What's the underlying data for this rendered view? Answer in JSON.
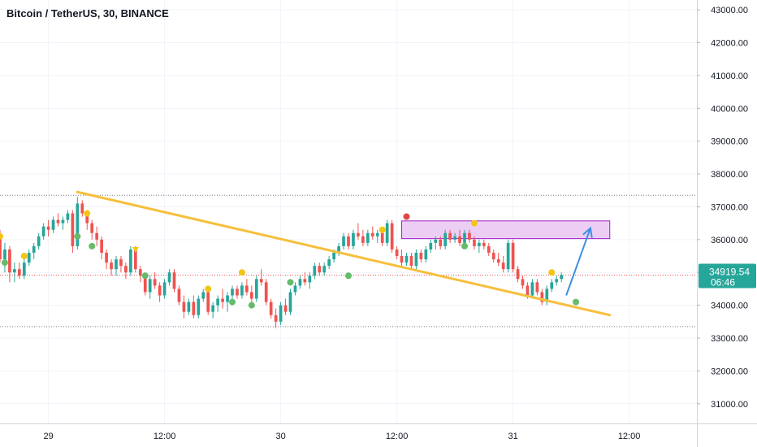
{
  "chart_title": "Bitcoin / TetherUS, 30, BINANCE",
  "colors": {
    "up": "#26a69a",
    "down": "#ef5350",
    "trendline": "#f6bf3c",
    "resistance_box_fill": "#e9c6f3",
    "resistance_box_border": "#a020c8",
    "arrow": "#3d8fe0",
    "price_label_bg": "#26a69a",
    "yellow_dot": "#f3c614",
    "green_dot": "#66bb6a",
    "red_dot": "#e04646"
  },
  "chart_data": {
    "type": "candlestick",
    "ylim": [
      30400,
      43300
    ],
    "y_ticks": [
      "43000.00",
      "42000.00",
      "41000.00",
      "40000.00",
      "39000.00",
      "38000.00",
      "37000.00",
      "36000.00",
      "35000.00",
      "34000.00",
      "33000.00",
      "32000.00",
      "31000.00"
    ],
    "x_ticks": [
      "29",
      "12:00",
      "30",
      "12:00",
      "31",
      "12:00"
    ],
    "x_tick_index": [
      12,
      36,
      60,
      84,
      108,
      132
    ],
    "x_range": [
      2,
      146
    ],
    "candles": [
      [
        36300,
        36800,
        35900,
        36500
      ],
      [
        36500,
        36600,
        36000,
        36100
      ],
      [
        36100,
        36300,
        35300,
        35400
      ],
      [
        35400,
        35900,
        35000,
        35700
      ],
      [
        35700,
        35800,
        34700,
        35000
      ],
      [
        35000,
        35300,
        34700,
        35100
      ],
      [
        35100,
        35300,
        34800,
        34900
      ],
      [
        34900,
        35500,
        34800,
        35300
      ],
      [
        35300,
        35700,
        35200,
        35600
      ],
      [
        35600,
        35900,
        35400,
        35800
      ],
      [
        35800,
        36200,
        35700,
        36100
      ],
      [
        36100,
        36500,
        36000,
        36400
      ],
      [
        36400,
        36600,
        36100,
        36300
      ],
      [
        36300,
        36700,
        36200,
        36600
      ],
      [
        36600,
        36800,
        36400,
        36500
      ],
      [
        36500,
        36700,
        36300,
        36600
      ],
      [
        36600,
        36900,
        36500,
        36800
      ],
      [
        36800,
        36900,
        35600,
        35800
      ],
      [
        35800,
        37300,
        35700,
        37100
      ],
      [
        37100,
        37200,
        36700,
        36800
      ],
      [
        36800,
        36900,
        36300,
        36500
      ],
      [
        36500,
        36600,
        36000,
        36200
      ],
      [
        36200,
        36400,
        35800,
        36000
      ],
      [
        36000,
        36100,
        35400,
        35600
      ],
      [
        35600,
        35700,
        35100,
        35300
      ],
      [
        35300,
        35400,
        34900,
        35100
      ],
      [
        35100,
        35500,
        34900,
        35400
      ],
      [
        35400,
        35500,
        35000,
        35200
      ],
      [
        35200,
        35300,
        34800,
        35000
      ],
      [
        35000,
        35800,
        34900,
        35700
      ],
      [
        35700,
        35800,
        35000,
        35100
      ],
      [
        35100,
        35200,
        34700,
        34900
      ],
      [
        34900,
        35000,
        34300,
        34400
      ],
      [
        34400,
        34900,
        34200,
        34800
      ],
      [
        34800,
        35000,
        34500,
        34600
      ],
      [
        34600,
        34700,
        34100,
        34300
      ],
      [
        34300,
        34800,
        34200,
        34700
      ],
      [
        34700,
        35100,
        34600,
        35000
      ],
      [
        35000,
        35100,
        34400,
        34500
      ],
      [
        34500,
        34600,
        34000,
        34100
      ],
      [
        34100,
        34300,
        33600,
        33800
      ],
      [
        33800,
        34200,
        33700,
        34100
      ],
      [
        34100,
        34300,
        33600,
        33700
      ],
      [
        33700,
        34300,
        33600,
        34200
      ],
      [
        34200,
        34500,
        34100,
        34400
      ],
      [
        34400,
        34500,
        33700,
        33800
      ],
      [
        33800,
        34100,
        33600,
        34000
      ],
      [
        34000,
        34300,
        33800,
        34200
      ],
      [
        34200,
        34500,
        33900,
        34100
      ],
      [
        34100,
        34400,
        33800,
        34300
      ],
      [
        34300,
        34600,
        34200,
        34500
      ],
      [
        34500,
        34600,
        34200,
        34300
      ],
      [
        34300,
        34700,
        34200,
        34600
      ],
      [
        34600,
        34800,
        34300,
        34400
      ],
      [
        34400,
        34600,
        34100,
        34200
      ],
      [
        34200,
        34900,
        34100,
        34800
      ],
      [
        34800,
        35100,
        34600,
        34700
      ],
      [
        34700,
        34800,
        34000,
        34100
      ],
      [
        34100,
        34200,
        33600,
        33700
      ],
      [
        33700,
        33900,
        33300,
        33500
      ],
      [
        33500,
        34100,
        33400,
        34000
      ],
      [
        34000,
        34200,
        33700,
        33800
      ],
      [
        33800,
        34500,
        33700,
        34400
      ],
      [
        34400,
        34700,
        34300,
        34600
      ],
      [
        34600,
        34900,
        34500,
        34800
      ],
      [
        34800,
        35000,
        34600,
        34700
      ],
      [
        34700,
        35000,
        34500,
        34900
      ],
      [
        34900,
        35300,
        34800,
        35200
      ],
      [
        35200,
        35300,
        34900,
        35000
      ],
      [
        35000,
        35300,
        34900,
        35200
      ],
      [
        35200,
        35500,
        35100,
        35400
      ],
      [
        35400,
        35700,
        35300,
        35600
      ],
      [
        35600,
        35900,
        35500,
        35800
      ],
      [
        35800,
        36200,
        35700,
        36100
      ],
      [
        36100,
        36200,
        35700,
        35800
      ],
      [
        35800,
        36300,
        35700,
        36200
      ],
      [
        36200,
        36500,
        36000,
        36100
      ],
      [
        36100,
        36300,
        35800,
        35900
      ],
      [
        35900,
        36300,
        35800,
        36200
      ],
      [
        36200,
        36400,
        36000,
        36100
      ],
      [
        36100,
        36300,
        35900,
        36200
      ],
      [
        36200,
        36300,
        35800,
        35900
      ],
      [
        35900,
        36600,
        35800,
        36500
      ],
      [
        36500,
        36600,
        35600,
        35700
      ],
      [
        35700,
        35800,
        35400,
        35500
      ],
      [
        35500,
        35700,
        35200,
        35300
      ],
      [
        35300,
        35600,
        35200,
        35500
      ],
      [
        35500,
        35600,
        35100,
        35200
      ],
      [
        35200,
        35700,
        35100,
        35600
      ],
      [
        35600,
        35700,
        35300,
        35400
      ],
      [
        35400,
        35800,
        35300,
        35700
      ],
      [
        35700,
        36000,
        35600,
        35900
      ],
      [
        35900,
        36100,
        35700,
        36000
      ],
      [
        36000,
        36100,
        35700,
        35800
      ],
      [
        35800,
        36300,
        35700,
        36200
      ],
      [
        36200,
        36300,
        35900,
        36000
      ],
      [
        36000,
        36200,
        35900,
        36100
      ],
      [
        36100,
        36300,
        35800,
        35900
      ],
      [
        35900,
        36300,
        35800,
        36200
      ],
      [
        36200,
        36300,
        35900,
        36000
      ],
      [
        36000,
        36100,
        35700,
        35800
      ],
      [
        35800,
        36000,
        35600,
        35900
      ],
      [
        35900,
        36000,
        35700,
        35800
      ],
      [
        35800,
        35900,
        35500,
        35600
      ],
      [
        35600,
        35700,
        35300,
        35400
      ],
      [
        35400,
        35600,
        35200,
        35300
      ],
      [
        35300,
        35500,
        35000,
        35100
      ],
      [
        35100,
        36000,
        35000,
        35900
      ],
      [
        35900,
        36000,
        35000,
        35100
      ],
      [
        35100,
        35200,
        34700,
        34800
      ],
      [
        34800,
        34900,
        34500,
        34600
      ],
      [
        34600,
        34700,
        34200,
        34300
      ],
      [
        34300,
        34800,
        34200,
        34700
      ],
      [
        34700,
        34800,
        34300,
        34400
      ],
      [
        34400,
        34500,
        34000,
        34100
      ],
      [
        34100,
        34600,
        34000,
        34500
      ],
      [
        34500,
        34800,
        34400,
        34700
      ],
      [
        34700,
        34900,
        34600,
        34800
      ],
      [
        34800,
        35000,
        34700,
        34920
      ]
    ],
    "trendline": [
      [
        18,
        37450
      ],
      [
        128,
        33700
      ]
    ],
    "resistance_box": {
      "x0": 85,
      "x1": 128,
      "y0": 36030,
      "y1": 36570
    },
    "arrow": [
      [
        119,
        34300
      ],
      [
        124,
        36350
      ]
    ],
    "dotted_levels": [
      37350,
      33350
    ],
    "last_price": {
      "value": 34919.54,
      "label": "34919.54",
      "countdown": "06:46"
    },
    "markers": [
      {
        "i": 0,
        "p": 36800,
        "c": "yellow"
      },
      {
        "i": 2,
        "p": 36100,
        "c": "yellow"
      },
      {
        "i": 3,
        "p": 35300,
        "c": "green"
      },
      {
        "i": 7,
        "p": 35500,
        "c": "yellow"
      },
      {
        "i": 18,
        "p": 36100,
        "c": "green"
      },
      {
        "i": 20,
        "p": 36800,
        "c": "yellow"
      },
      {
        "i": 21,
        "p": 35800,
        "c": "green"
      },
      {
        "i": 30,
        "p": 35700,
        "c": "yellow-triangle"
      },
      {
        "i": 32,
        "p": 34900,
        "c": "green"
      },
      {
        "i": 45,
        "p": 34500,
        "c": "yellow"
      },
      {
        "i": 50,
        "p": 34100,
        "c": "green"
      },
      {
        "i": 52,
        "p": 35000,
        "c": "yellow"
      },
      {
        "i": 54,
        "p": 34000,
        "c": "green"
      },
      {
        "i": 62,
        "p": 34700,
        "c": "green"
      },
      {
        "i": 74,
        "p": 34900,
        "c": "green"
      },
      {
        "i": 81,
        "p": 36300,
        "c": "yellow"
      },
      {
        "i": 86,
        "p": 36700,
        "c": "red"
      },
      {
        "i": 98,
        "p": 35800,
        "c": "green"
      },
      {
        "i": 100,
        "p": 36500,
        "c": "yellow"
      },
      {
        "i": 116,
        "p": 35000,
        "c": "yellow"
      },
      {
        "i": 121,
        "p": 34100,
        "c": "green"
      }
    ]
  }
}
